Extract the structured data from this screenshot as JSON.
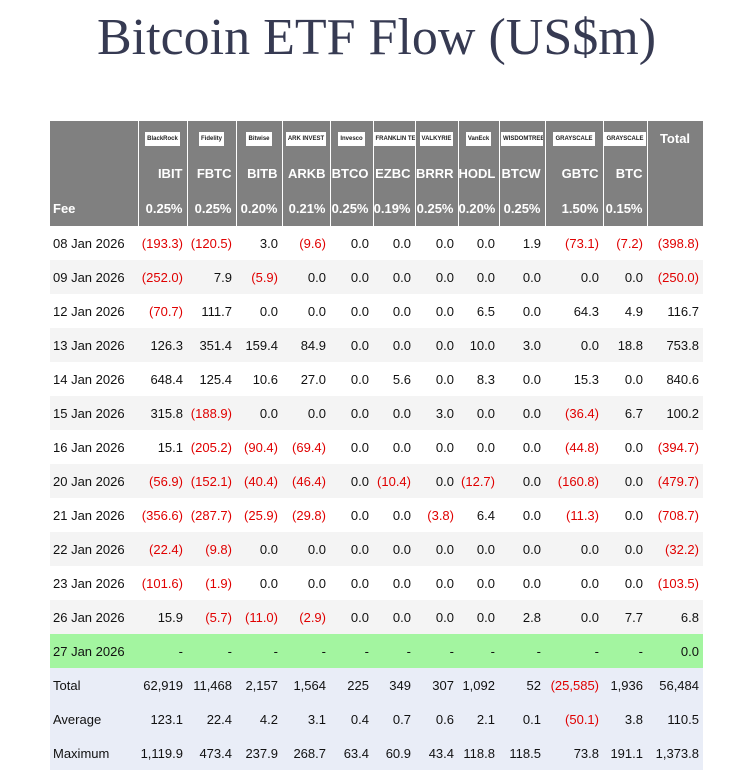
{
  "title": "Bitcoin ETF Flow (US$m)",
  "table": {
    "logos": [
      "BlackRock",
      "Fidelity",
      "Bitwise",
      "ARK INVEST",
      "Invesco",
      "FRANKLIN TEMPLETON",
      "VALKYRIE",
      "VanEck",
      "WISDOMTREE",
      "GRAYSCALE",
      "GRAYSCALE"
    ],
    "total_header": "Total",
    "tickers": [
      "IBIT",
      "FBTC",
      "BITB",
      "ARKB",
      "BTCO",
      "EZBC",
      "BRRR",
      "HODL",
      "BTCW",
      "GBTC",
      "BTC"
    ],
    "fee": {
      "label": "Fee",
      "values": [
        "0.25%",
        "0.25%",
        "0.20%",
        "0.21%",
        "0.25%",
        "0.19%",
        "0.25%",
        "0.20%",
        "0.25%",
        "1.50%",
        "0.15%"
      ]
    },
    "rows": [
      {
        "date": "08 Jan 2026",
        "values": [
          "(193.3)",
          "(120.5)",
          "3.0",
          "(9.6)",
          "0.0",
          "0.0",
          "0.0",
          "0.0",
          "1.9",
          "(73.1)",
          "(7.2)",
          "(398.8)"
        ]
      },
      {
        "date": "09 Jan 2026",
        "values": [
          "(252.0)",
          "7.9",
          "(5.9)",
          "0.0",
          "0.0",
          "0.0",
          "0.0",
          "0.0",
          "0.0",
          "0.0",
          "0.0",
          "(250.0)"
        ]
      },
      {
        "date": "12 Jan 2026",
        "values": [
          "(70.7)",
          "111.7",
          "0.0",
          "0.0",
          "0.0",
          "0.0",
          "0.0",
          "6.5",
          "0.0",
          "64.3",
          "4.9",
          "116.7"
        ]
      },
      {
        "date": "13 Jan 2026",
        "values": [
          "126.3",
          "351.4",
          "159.4",
          "84.9",
          "0.0",
          "0.0",
          "0.0",
          "10.0",
          "3.0",
          "0.0",
          "18.8",
          "753.8"
        ]
      },
      {
        "date": "14 Jan 2026",
        "values": [
          "648.4",
          "125.4",
          "10.6",
          "27.0",
          "0.0",
          "5.6",
          "0.0",
          "8.3",
          "0.0",
          "15.3",
          "0.0",
          "840.6"
        ]
      },
      {
        "date": "15 Jan 2026",
        "values": [
          "315.8",
          "(188.9)",
          "0.0",
          "0.0",
          "0.0",
          "0.0",
          "3.0",
          "0.0",
          "0.0",
          "(36.4)",
          "6.7",
          "100.2"
        ]
      },
      {
        "date": "16 Jan 2026",
        "values": [
          "15.1",
          "(205.2)",
          "(90.4)",
          "(69.4)",
          "0.0",
          "0.0",
          "0.0",
          "0.0",
          "0.0",
          "(44.8)",
          "0.0",
          "(394.7)"
        ]
      },
      {
        "date": "20 Jan 2026",
        "values": [
          "(56.9)",
          "(152.1)",
          "(40.4)",
          "(46.4)",
          "0.0",
          "(10.4)",
          "0.0",
          "(12.7)",
          "0.0",
          "(160.8)",
          "0.0",
          "(479.7)"
        ]
      },
      {
        "date": "21 Jan 2026",
        "values": [
          "(356.6)",
          "(287.7)",
          "(25.9)",
          "(29.8)",
          "0.0",
          "0.0",
          "(3.8)",
          "6.4",
          "0.0",
          "(11.3)",
          "0.0",
          "(708.7)"
        ]
      },
      {
        "date": "22 Jan 2026",
        "values": [
          "(22.4)",
          "(9.8)",
          "0.0",
          "0.0",
          "0.0",
          "0.0",
          "0.0",
          "0.0",
          "0.0",
          "0.0",
          "0.0",
          "(32.2)"
        ]
      },
      {
        "date": "23 Jan 2026",
        "values": [
          "(101.6)",
          "(1.9)",
          "0.0",
          "0.0",
          "0.0",
          "0.0",
          "0.0",
          "0.0",
          "0.0",
          "0.0",
          "0.0",
          "(103.5)"
        ]
      },
      {
        "date": "26 Jan 2026",
        "values": [
          "15.9",
          "(5.7)",
          "(11.0)",
          "(2.9)",
          "0.0",
          "0.0",
          "0.0",
          "0.0",
          "2.8",
          "0.0",
          "7.7",
          "6.8"
        ]
      },
      {
        "date": "27 Jan 2026",
        "highlight": true,
        "values": [
          "-",
          "-",
          "-",
          "-",
          "-",
          "-",
          "-",
          "-",
          "-",
          "-",
          "-",
          "0.0"
        ]
      }
    ],
    "summary": [
      {
        "label": "Total",
        "values": [
          "62,919",
          "11,468",
          "2,157",
          "1,564",
          "225",
          "349",
          "307",
          "1,092",
          "52",
          "(25,585)",
          "1,936",
          "56,484"
        ]
      },
      {
        "label": "Average",
        "values": [
          "123.1",
          "22.4",
          "4.2",
          "3.1",
          "0.4",
          "0.7",
          "0.6",
          "2.1",
          "0.1",
          "(50.1)",
          "3.8",
          "110.5"
        ]
      },
      {
        "label": "Maximum",
        "values": [
          "1,119.9",
          "473.4",
          "237.9",
          "268.7",
          "63.4",
          "60.9",
          "43.4",
          "118.8",
          "118.5",
          "73.8",
          "191.1",
          "1,373.8"
        ]
      }
    ]
  }
}
